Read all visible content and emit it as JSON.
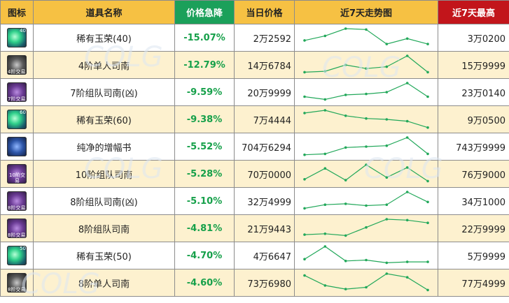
{
  "headers": {
    "icon": "图标",
    "name": "道具名称",
    "drop": "价格急降",
    "price": "当日价格",
    "trend": "近7天走势图",
    "high": "近7天最高"
  },
  "colors": {
    "header_bg": "#f6c143",
    "drop_header_bg": "#1ba05a",
    "high_header_bg": "#c2151b",
    "drop_text": "#16a04a",
    "row_alt_bg": "#fdf1cf",
    "sparkline": "#22a85a"
  },
  "rows": [
    {
      "icon": "green-orb-icon",
      "icon_style": "orb",
      "icon_level": "40",
      "icon_tag": "",
      "name": "稀有玉荣(40)",
      "drop": "-15.07%",
      "price": "2万2592",
      "high": "3万0200",
      "trend": [
        0.35,
        0.6,
        1.0,
        0.95,
        0.15,
        0.45,
        0.15
      ]
    },
    {
      "icon": "dark-box-icon",
      "icon_style": "box-dark",
      "icon_level": "",
      "icon_tag": "4阶交易",
      "name": "4阶单人司南",
      "drop": "-12.79%",
      "price": "14万6784",
      "high": "15万9999",
      "trend": [
        0.1,
        0.15,
        0.5,
        0.3,
        0.4,
        1.0,
        0.1
      ]
    },
    {
      "icon": "purple-box-icon",
      "icon_style": "box-purple",
      "icon_level": "",
      "icon_tag": "7阶交易",
      "name": "7阶组队司南(凶)",
      "drop": "-9.59%",
      "price": "20万9999",
      "high": "23万0140",
      "trend": [
        0.25,
        0.1,
        0.35,
        0.4,
        0.5,
        1.0,
        0.25
      ]
    },
    {
      "icon": "green-orb-icon",
      "icon_style": "orb",
      "icon_level": "60",
      "icon_tag": "",
      "name": "稀有玉荣(60)",
      "drop": "-9.38%",
      "price": "7万4444",
      "high": "9万0500",
      "trend": [
        0.85,
        1.0,
        0.7,
        0.55,
        0.5,
        0.4,
        0.05
      ]
    },
    {
      "icon": "blue-book-icon",
      "icon_style": "book",
      "icon_level": "",
      "icon_tag": "",
      "name": "纯净的增幅书",
      "drop": "-5.52%",
      "price": "704万6294",
      "high": "743万9999",
      "trend": [
        0.05,
        0.1,
        0.45,
        0.5,
        0.55,
        1.0,
        0.1
      ]
    },
    {
      "icon": "purple-box-icon",
      "icon_style": "box-purple",
      "icon_level": "",
      "icon_tag": "10阶交易",
      "name": "10阶组队司南",
      "drop": "-5.28%",
      "price": "70万0000",
      "high": "76万9000",
      "trend": [
        0.2,
        0.8,
        0.15,
        1.0,
        0.3,
        0.85,
        0.1
      ]
    },
    {
      "icon": "purple-box-icon",
      "icon_style": "box-purple",
      "icon_level": "",
      "icon_tag": "8阶交易",
      "name": "8阶组队司南(凶)",
      "drop": "-5.10%",
      "price": "32万4999",
      "high": "34万1000",
      "trend": [
        0.1,
        0.3,
        0.35,
        0.25,
        0.3,
        1.0,
        0.45
      ]
    },
    {
      "icon": "purple-box-icon",
      "icon_style": "box-purple",
      "icon_level": "",
      "icon_tag": "8阶交易",
      "name": "8阶组队司南",
      "drop": "-4.81%",
      "price": "21万9443",
      "high": "22万9999",
      "trend": [
        0.15,
        0.2,
        0.1,
        0.55,
        1.0,
        0.95,
        0.8
      ]
    },
    {
      "icon": "green-orb-icon",
      "icon_style": "orb",
      "icon_level": "50",
      "icon_tag": "",
      "name": "稀有玉荣(50)",
      "drop": "-4.70%",
      "price": "4万6647",
      "high": "5万9999",
      "trend": [
        0.3,
        1.0,
        0.2,
        0.25,
        0.1,
        0.15,
        0.15
      ]
    },
    {
      "icon": "dark-box-icon",
      "icon_style": "box-dark",
      "icon_level": "",
      "icon_tag": "8阶交易",
      "name": "8阶单人司南",
      "drop": "-4.60%",
      "price": "73万6980",
      "high": "77万4999",
      "trend": [
        0.9,
        0.35,
        0.15,
        0.25,
        1.0,
        0.8,
        0.1
      ]
    }
  ]
}
